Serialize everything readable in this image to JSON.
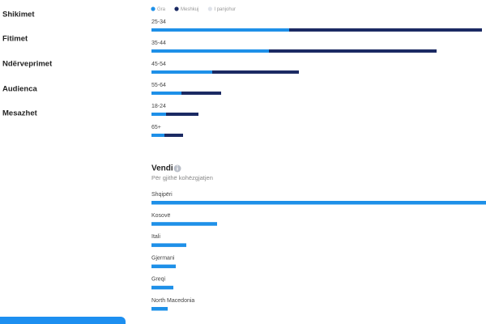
{
  "sidebar": {
    "items": [
      "Shikimet",
      "Fitimet",
      "Ndërveprimet",
      "Audienca",
      "Mesazhet"
    ]
  },
  "age": {
    "legend": [
      {
        "name": "Gra",
        "color": "#1e90e8"
      },
      {
        "name": "Meshkuj",
        "color": "#1b2a63"
      },
      {
        "name": "I panjohur",
        "color": "#dfe3ea"
      }
    ],
    "groups": [
      {
        "label": "25-34",
        "values": [
          170,
          238
        ]
      },
      {
        "label": "35-44",
        "values": [
          145,
          207
        ]
      },
      {
        "label": "45-54",
        "values": [
          75,
          107
        ]
      },
      {
        "label": "55-64",
        "values": [
          37,
          49
        ]
      },
      {
        "label": "18-24",
        "values": [
          18,
          40
        ]
      },
      {
        "label": "65+",
        "values": [
          16,
          23
        ]
      }
    ]
  },
  "country": {
    "title": "Vendi",
    "subtitle": "Për gjithë kohëzgjatjen",
    "color": "#1e90e8",
    "rows": [
      {
        "label": "Shqipëri",
        "value": 413
      },
      {
        "label": "Kosovë",
        "value": 81
      },
      {
        "label": "Itali",
        "value": 43
      },
      {
        "label": "Gjermani",
        "value": 30
      },
      {
        "label": "Greqi",
        "value": 27
      },
      {
        "label": "North Macedonia",
        "value": 20
      }
    ]
  }
}
